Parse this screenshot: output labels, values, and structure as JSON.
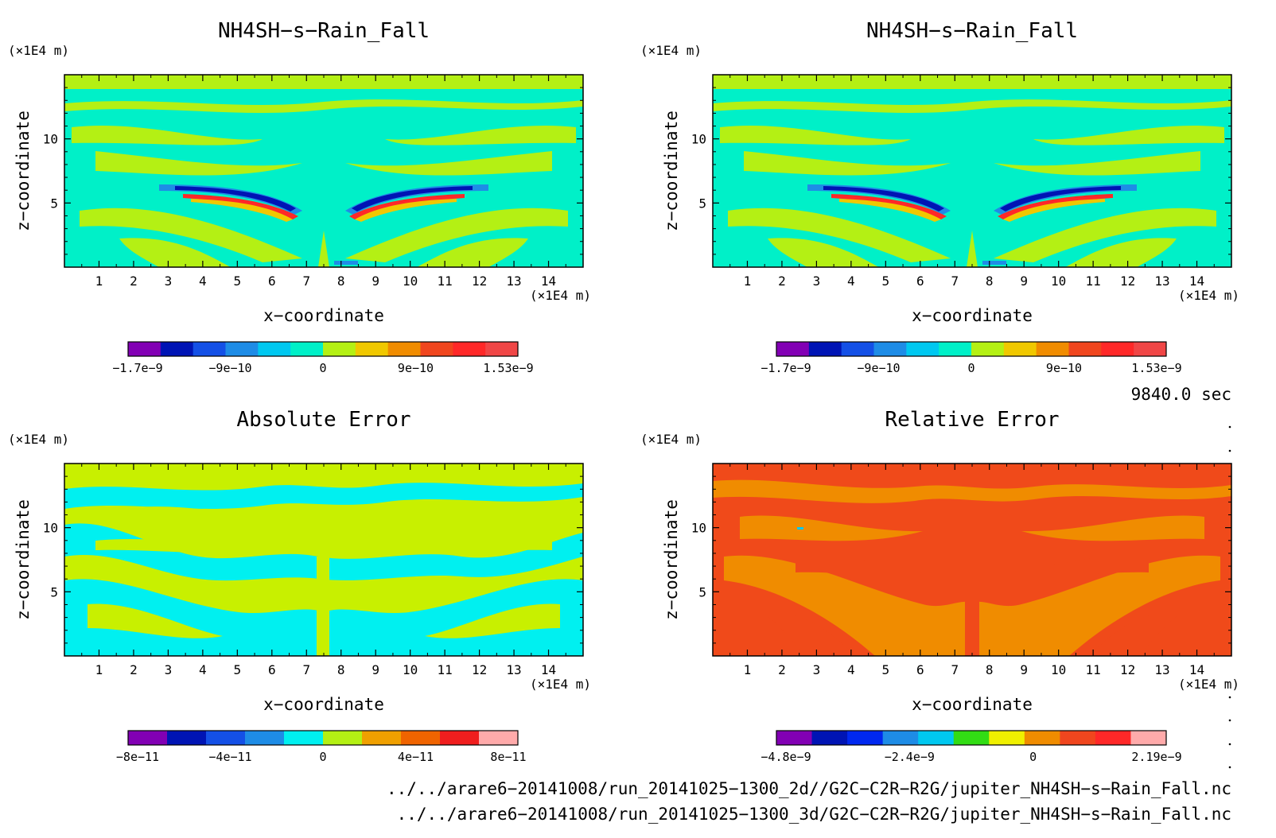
{
  "chart_data": [
    {
      "type": "heatmap",
      "title": "NH4SH−s−Rain_Fall",
      "xlabel": "x−coordinate",
      "ylabel": "z−coordinate",
      "x_unit": "(×1E4 m)",
      "y_unit": "(×1E4 m)",
      "xlim": [
        0,
        15
      ],
      "ylim": [
        0,
        15
      ],
      "xticks": [
        "1",
        "2",
        "3",
        "4",
        "5",
        "6",
        "7",
        "8",
        "9",
        "10",
        "11",
        "12",
        "13",
        "14"
      ],
      "yticks": [
        "5",
        "10"
      ],
      "colorbar": {
        "colors": [
          "#8200b4",
          "#0014b4",
          "#1450e6",
          "#1e8ce6",
          "#00c8f0",
          "#00f0c8",
          "#b4f014",
          "#f0c800",
          "#f08c00",
          "#f0461e",
          "#ff2828",
          "#f04646"
        ],
        "labels": [
          "−1.7e−9",
          "−9e−10",
          "0",
          "9e−10",
          "1.53e−9"
        ]
      },
      "background": "#00f0c8"
    },
    {
      "type": "heatmap",
      "title": "NH4SH−s−Rain_Fall",
      "xlabel": "x−coordinate",
      "ylabel": "z−coordinate",
      "x_unit": "(×1E4 m)",
      "y_unit": "(×1E4 m)",
      "xlim": [
        0,
        15
      ],
      "ylim": [
        0,
        15
      ],
      "xticks": [
        "1",
        "2",
        "3",
        "4",
        "5",
        "6",
        "7",
        "8",
        "9",
        "10",
        "11",
        "12",
        "13",
        "14"
      ],
      "yticks": [
        "5",
        "10"
      ],
      "colorbar": {
        "colors": [
          "#8200b4",
          "#0014b4",
          "#1450e6",
          "#1e8ce6",
          "#00c8f0",
          "#00f0c8",
          "#b4f014",
          "#f0c800",
          "#f08c00",
          "#f0461e",
          "#ff2828",
          "#f04646"
        ],
        "labels": [
          "−1.7e−9",
          "−9e−10",
          "0",
          "9e−10",
          "1.53e−9"
        ]
      },
      "background": "#00f0c8"
    },
    {
      "type": "heatmap",
      "title": "Absolute Error",
      "xlabel": "x−coordinate",
      "ylabel": "z−coordinate",
      "x_unit": "(×1E4 m)",
      "y_unit": "(×1E4 m)",
      "xlim": [
        0,
        15
      ],
      "ylim": [
        0,
        15
      ],
      "xticks": [
        "1",
        "2",
        "3",
        "4",
        "5",
        "6",
        "7",
        "8",
        "9",
        "10",
        "11",
        "12",
        "13",
        "14"
      ],
      "yticks": [
        "5",
        "10"
      ],
      "colorbar": {
        "colors": [
          "#8200b4",
          "#0014b4",
          "#1450e6",
          "#1e8ce6",
          "#00f0f0",
          "#b4f014",
          "#f0a000",
          "#f06400",
          "#f01e1e",
          "#ffaaaa"
        ],
        "labels": [
          "−8e−11",
          "−4e−11",
          "0",
          "4e−11",
          "8e−11"
        ]
      },
      "background": "#c8f000"
    },
    {
      "type": "heatmap",
      "title": "Relative Error",
      "xlabel": "x−coordinate",
      "ylabel": "z−coordinate",
      "x_unit": "(×1E4 m)",
      "y_unit": "(×1E4 m)",
      "xlim": [
        0,
        15
      ],
      "ylim": [
        0,
        15
      ],
      "xticks": [
        "1",
        "2",
        "3",
        "4",
        "5",
        "6",
        "7",
        "8",
        "9",
        "10",
        "11",
        "12",
        "13",
        "14"
      ],
      "yticks": [
        "5",
        "10"
      ],
      "colorbar": {
        "colors": [
          "#8200b4",
          "#0014b4",
          "#0028f0",
          "#1e8ce6",
          "#00c8f0",
          "#32dc14",
          "#f0f000",
          "#f08c00",
          "#f0461e",
          "#ff2828",
          "#ffaaaa"
        ],
        "labels": [
          "−4.8e−9",
          "−2.4e−9",
          "0",
          "2.19e−9"
        ]
      },
      "background": "#f04a1a"
    }
  ],
  "time_label": "9840.0 sec",
  "file_paths": [
    "../../arare6−20141008/run_20141025−1300_2d//G2C−C2R−R2G/jupiter_NH4SH−s−Rain_Fall.nc",
    "../../arare6−20141008/run_20141025−1300_3d/G2C−C2R−R2G/jupiter_NH4SH−s−Rain_Fall.nc"
  ]
}
